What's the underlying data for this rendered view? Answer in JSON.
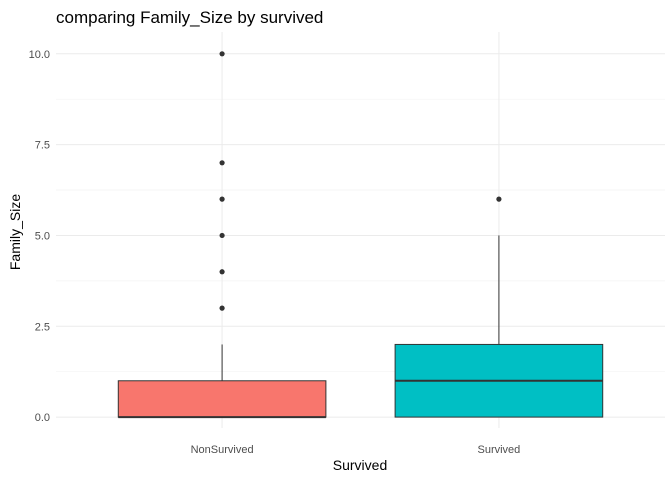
{
  "chart_data": {
    "type": "boxplot",
    "title": "comparing Family_Size by survived",
    "xlabel": "Survived",
    "ylabel": "Family_Size",
    "ylim": [
      -0.3,
      10.6
    ],
    "yticks": [
      0.0,
      2.5,
      5.0,
      7.5,
      10.0
    ],
    "ytick_labels": [
      "0.0",
      "2.5",
      "5.0",
      "7.5",
      "10.0"
    ],
    "grid": true,
    "legend": "none",
    "categories": [
      "NonSurvived",
      "Survived"
    ],
    "boxes": [
      {
        "category": "NonSurvived",
        "min": 0,
        "q1": 0,
        "median": 0,
        "q3": 1,
        "max": 2,
        "outliers": [
          3,
          4,
          5,
          6,
          7,
          10
        ],
        "color": "#F8766D"
      },
      {
        "category": "Survived",
        "min": 0,
        "q1": 0,
        "median": 1,
        "q3": 2,
        "max": 5,
        "outliers": [
          6
        ],
        "color": "#00BFC4"
      }
    ]
  }
}
